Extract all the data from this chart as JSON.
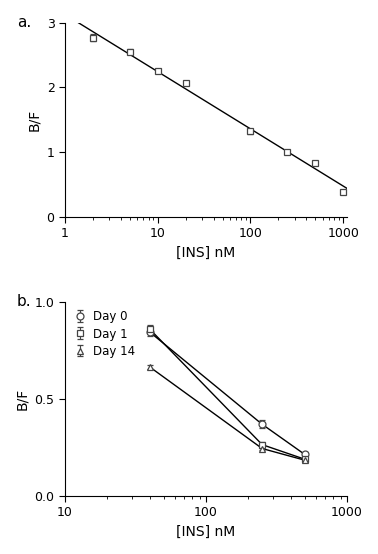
{
  "panel_a": {
    "x": [
      2,
      5,
      10,
      20,
      100,
      250,
      500,
      1000
    ],
    "y": [
      2.77,
      2.55,
      2.25,
      2.07,
      1.32,
      1.0,
      0.83,
      0.38
    ],
    "yerr": [
      0.05,
      0.04,
      0.03,
      0.03,
      0.04,
      0.03,
      0.03,
      0.03
    ],
    "xlim": [
      1,
      1100
    ],
    "ylim": [
      0.0,
      3.0
    ],
    "yticks": [
      0.0,
      1.0,
      2.0,
      3.0
    ],
    "xlabel": "[INS] nM",
    "ylabel": "B/F",
    "label": "a."
  },
  "panel_b": {
    "day0": {
      "x": [
        40,
        250,
        500
      ],
      "y": [
        0.845,
        0.37,
        0.215
      ],
      "yerr": [
        0.02,
        0.02,
        0.01
      ],
      "marker": "o",
      "label": "Day 0"
    },
    "day1": {
      "x": [
        40,
        250,
        500
      ],
      "y": [
        0.86,
        0.265,
        0.19
      ],
      "yerr": [
        0.02,
        0.015,
        0.015
      ],
      "marker": "s",
      "label": "Day 1"
    },
    "day14": {
      "x": [
        40,
        250,
        500
      ],
      "y": [
        0.665,
        0.245,
        0.185
      ],
      "yerr": [
        0.01,
        0.01,
        0.01
      ],
      "marker": "^",
      "label": "Day 14"
    },
    "xlim": [
      10,
      1000
    ],
    "ylim": [
      0.0,
      1.0
    ],
    "yticks": [
      0.0,
      0.5,
      1.0
    ],
    "xlabel": "[INS] nM",
    "ylabel": "B/F",
    "label": "b."
  },
  "fit_color": "#000000",
  "data_color": "#555555",
  "line_color": "#000000",
  "background": "#ffffff"
}
